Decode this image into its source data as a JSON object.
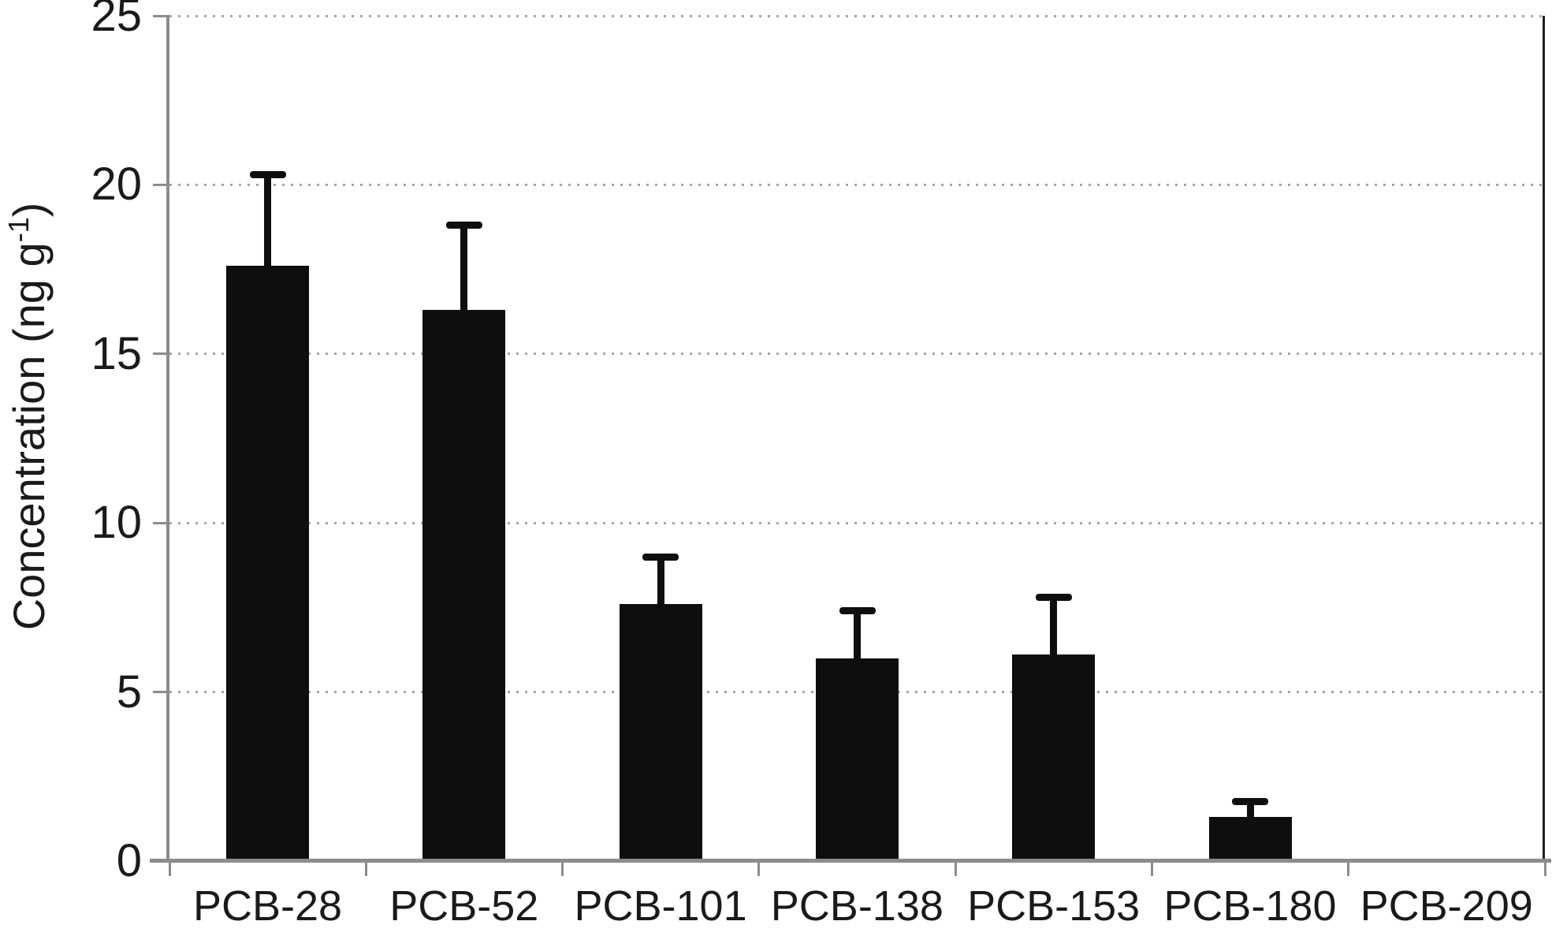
{
  "chart_data": {
    "type": "bar",
    "title": "",
    "categories": [
      "PCB-28",
      "PCB-52",
      "PCB-101",
      "PCB-138",
      "PCB-153",
      "PCB-180",
      "PCB-209"
    ],
    "values": [
      17.6,
      16.3,
      7.6,
      6.0,
      6.1,
      1.3,
      0
    ],
    "errors_plus": [
      2.7,
      2.5,
      1.4,
      1.4,
      1.7,
      0.45,
      0
    ],
    "xlabel": "",
    "ylabel": "Concentration (ng g-1)",
    "ylim": [
      0,
      25
    ],
    "yticks": [
      0,
      5,
      10,
      15,
      20,
      25
    ],
    "grid": "horizontal dotted gridlines at every y tick including top",
    "legend": "none",
    "bar_color": "#0e0e0e"
  },
  "axes": {
    "y_title_main": "Concentration (ng g",
    "y_title_sup": "-1",
    "y_title_close": ")"
  },
  "colors": {
    "background": "#ffffff",
    "bar": "#0e0e0e",
    "axis": "#8c8c8c",
    "grid": "#a6a6a6",
    "plot_right_border": "#202020",
    "text": "#1a1a1a"
  }
}
